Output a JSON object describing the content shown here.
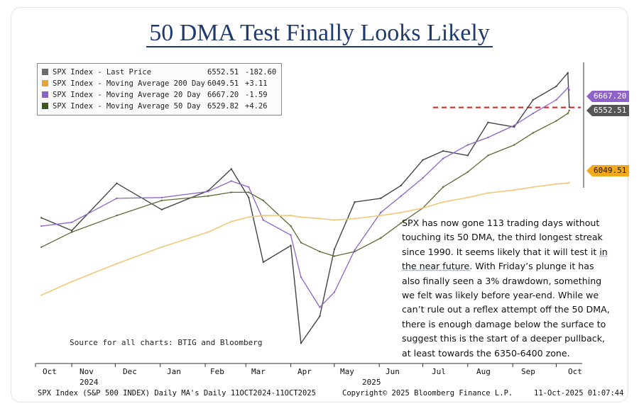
{
  "title": "50 DMA Test Finally Looks Likely",
  "legend": [
    {
      "label": "SPX Index - Last Price",
      "value": "6552.51",
      "change": "-182.60",
      "color": "#6b6b6b"
    },
    {
      "label": "SPX Index - Moving Average 200 Day",
      "value": "6049.51",
      "change": "+3.11",
      "color": "#e9a23b"
    },
    {
      "label": "SPX Index - Moving Average 20 Day",
      "value": "6667.20",
      "change": "-1.59",
      "color": "#8f62c9"
    },
    {
      "label": "SPX Index - Moving Average 50 Day",
      "value": "6529.82",
      "change": "+4.26",
      "color": "#3d5a1e"
    }
  ],
  "tags": {
    "ma20": {
      "text": "6667.20",
      "color": "#8f62c9"
    },
    "last": {
      "text": "6552.51",
      "color": "#555555"
    },
    "ma200": {
      "text": "6049.51",
      "color": "#f2a91c"
    }
  },
  "annotation": {
    "p1": "SPX has now gone 113 trading days without touching its 50 DMA, the third longest streak since 1990. It seems likely that it will test it ",
    "u1": "in the near future",
    "p2": ". With Friday’s plunge it has also finally seen a 3% drawdown, something we felt was likely before year-end. While we can’t rule out a reflex attempt off the 50 DMA, there is enough damage below the surface to suggest this is the start of a deeper pullback, at least towards the 6350-6400 zone."
  },
  "source": "Source for all charts: BTIG and Bloomberg",
  "xaxis": {
    "months": [
      "Oct",
      "Nov",
      "Dec",
      "Jan",
      "Feb",
      "Mar",
      "Apr",
      "May",
      "Jun",
      "Jul",
      "Aug",
      "Sep",
      "Oct"
    ],
    "years": [
      "2024",
      "2025"
    ]
  },
  "footer": {
    "left": "SPX Index (S&P 500 INDEX) Daily MA's Daily 11OCT2024-11OCT2025",
    "center": "Copyright© 2025 Bloomberg Finance L.P.",
    "right": "11-Oct-2025 01:07:44"
  },
  "chart_data": {
    "type": "line",
    "x": [
      "2024-10-11",
      "2024-11-01",
      "2024-12-02",
      "2025-01-02",
      "2025-02-03",
      "2025-02-19",
      "2025-03-03",
      "2025-03-13",
      "2025-04-01",
      "2025-04-08",
      "2025-04-21",
      "2025-05-01",
      "2025-05-15",
      "2025-06-02",
      "2025-06-16",
      "2025-07-01",
      "2025-07-15",
      "2025-08-01",
      "2025-08-15",
      "2025-09-02",
      "2025-09-15",
      "2025-10-01",
      "2025-10-09",
      "2025-10-10"
    ],
    "series": [
      {
        "name": "SPX Index - Last Price",
        "values": [
          5815,
          5730,
          6045,
          5870,
          5995,
          6140,
          5950,
          5520,
          5630,
          4980,
          5160,
          5605,
          5920,
          5945,
          6030,
          6200,
          6260,
          6230,
          6450,
          6420,
          6600,
          6690,
          6780,
          6552.51
        ]
      },
      {
        "name": "SPX Index - Moving Average 20 Day",
        "values": [
          5760,
          5785,
          5945,
          5950,
          5990,
          6060,
          6020,
          5800,
          5700,
          5420,
          5220,
          5320,
          5600,
          5850,
          5960,
          6080,
          6210,
          6300,
          6350,
          6430,
          6510,
          6600,
          6680,
          6667.2
        ]
      },
      {
        "name": "SPX Index - Moving Average 50 Day",
        "values": [
          5620,
          5720,
          5830,
          5930,
          5960,
          5985,
          5985,
          5930,
          5760,
          5650,
          5590,
          5560,
          5590,
          5680,
          5780,
          5880,
          6020,
          6120,
          6230,
          6300,
          6380,
          6460,
          6510,
          6529.82
        ]
      },
      {
        "name": "SPX Index - Moving Average 200 Day",
        "values": [
          5300,
          5390,
          5510,
          5620,
          5720,
          5790,
          5820,
          5830,
          5830,
          5820,
          5810,
          5800,
          5810,
          5830,
          5850,
          5880,
          5920,
          5950,
          5980,
          6000,
          6020,
          6040,
          6046,
          6049.51
        ]
      }
    ],
    "reference_line": {
      "y": 6550,
      "style": "dashed",
      "color": "#d42020"
    },
    "ylim": [
      4850,
      6850
    ],
    "colors": {
      "price": "#444444",
      "ma20": "#8f62c9",
      "ma50": "#5c6b35",
      "ma200": "#f0c87a",
      "ref": "#d42020"
    }
  }
}
